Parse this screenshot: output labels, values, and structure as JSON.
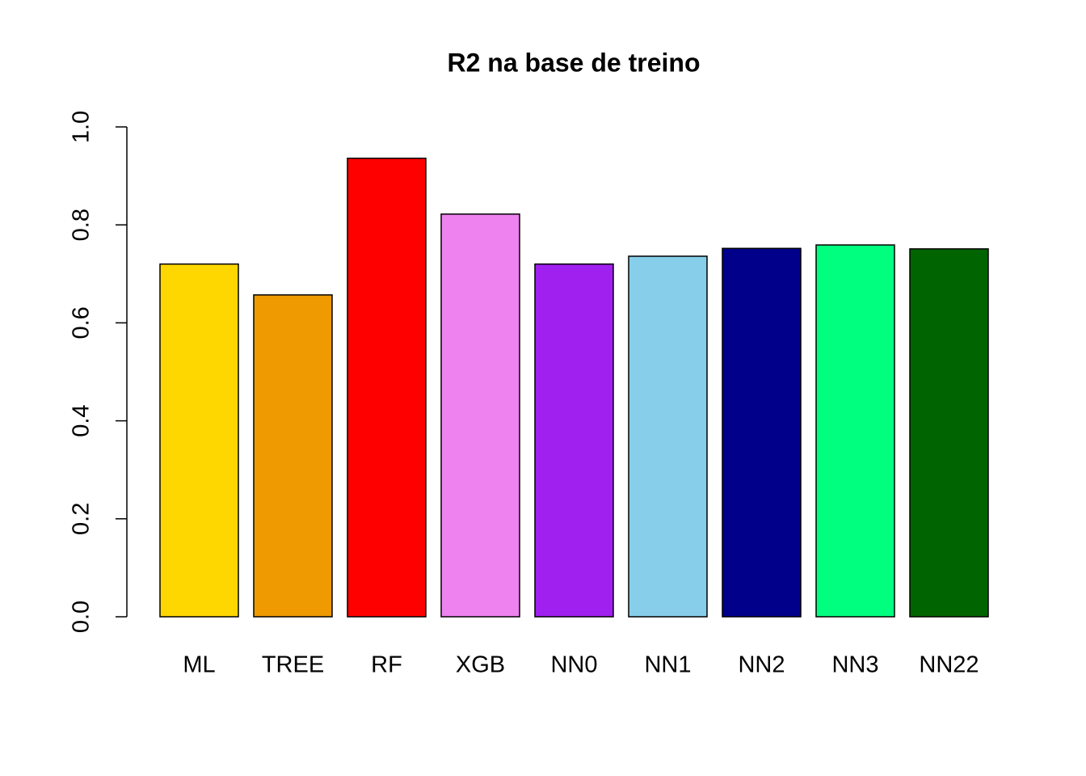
{
  "chart_data": {
    "type": "bar",
    "title": "R2 na base de treino",
    "categories": [
      "ML",
      "TREE",
      "RF",
      "XGB",
      "NN0",
      "NN1",
      "NN2",
      "NN3",
      "NN22"
    ],
    "values": [
      0.72,
      0.657,
      0.936,
      0.822,
      0.72,
      0.736,
      0.752,
      0.759,
      0.751
    ],
    "colors": [
      "#ffd700",
      "#ee9a00",
      "#ff0000",
      "#ee82ee",
      "#a020f0",
      "#87ceeb",
      "#00008b",
      "#00ff7f",
      "#006400"
    ],
    "ylim": [
      0,
      1
    ],
    "yticks": [
      {
        "value": 0,
        "label": "0.0"
      },
      0.2,
      0.4,
      0.6,
      0.8,
      {
        "value": 1,
        "label": "1.0"
      }
    ],
    "grid": false
  }
}
